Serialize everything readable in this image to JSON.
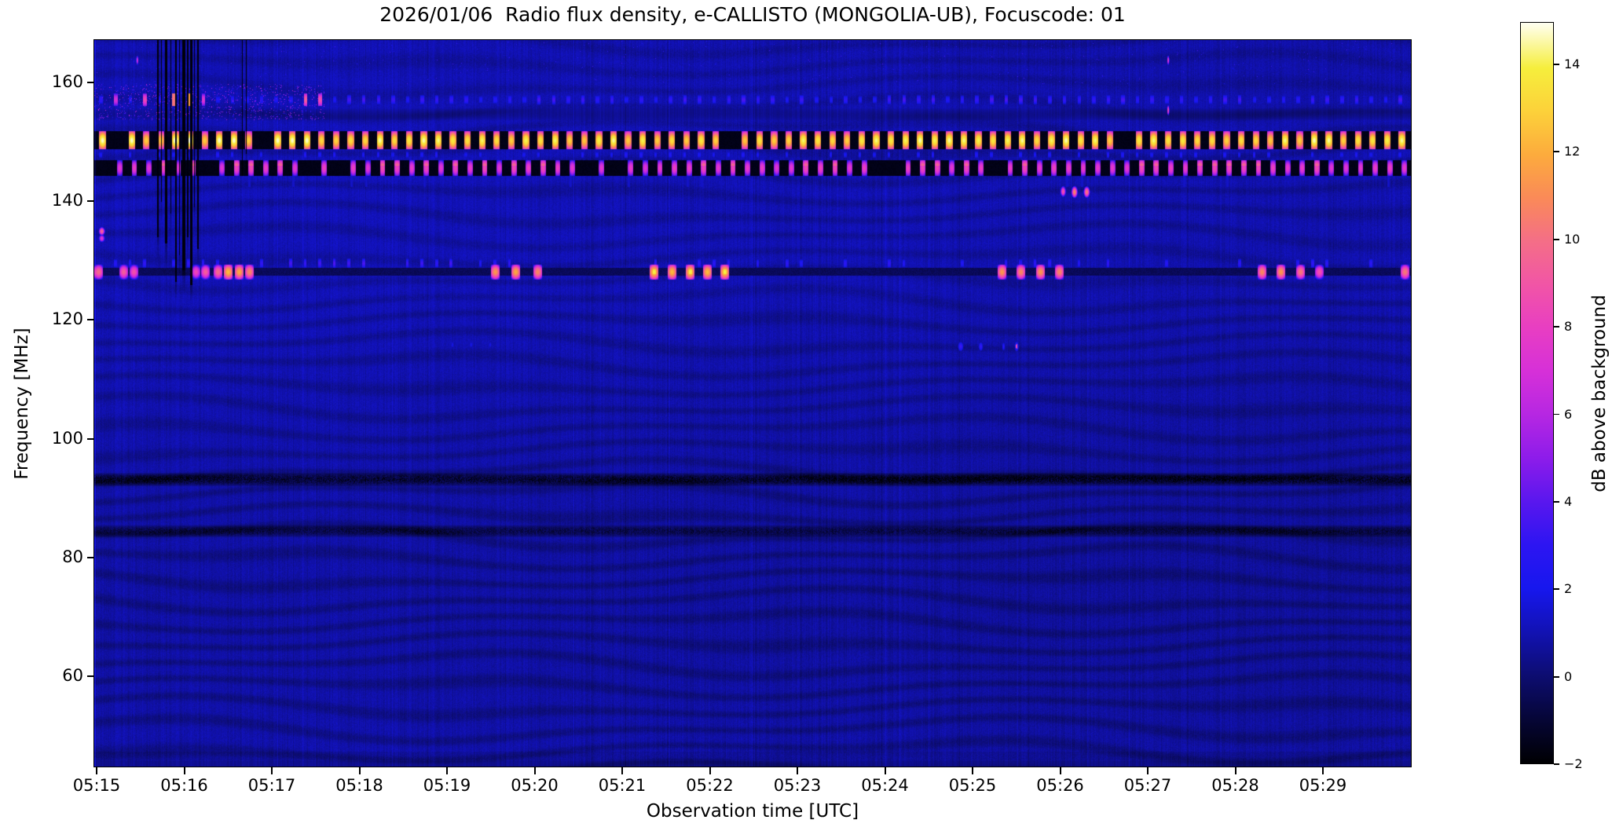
{
  "chart_data": {
    "type": "heatmap",
    "subtype": "radio-spectrogram",
    "title": "2026/01/06  Radio flux density, e-CALLISTO (MONGOLIA-UB), Focuscode: 01",
    "xlabel": "Observation time [UTC]",
    "ylabel": "Frequency [MHz]",
    "grid": false,
    "x_tick_labels": [
      "05:15",
      "05:16",
      "05:17",
      "05:18",
      "05:19",
      "05:20",
      "05:21",
      "05:22",
      "05:23",
      "05:24",
      "05:25",
      "05:26",
      "05:27",
      "05:28",
      "05:29"
    ],
    "x_range_minutes_after_0515": [
      0,
      15.03
    ],
    "y_tick_labels": [
      "160",
      "140",
      "120",
      "100",
      "80",
      "60"
    ],
    "y_ticks_mhz": [
      160,
      140,
      120,
      100,
      80,
      60
    ],
    "y_range_mhz": [
      44.8,
      167.1
    ],
    "background_level_db": 0.78,
    "colorbar": {
      "label": "dB above background",
      "tick_labels": [
        "14",
        "12",
        "10",
        "8",
        "6",
        "4",
        "2",
        "0",
        "−2"
      ],
      "tick_values": [
        14,
        12,
        10,
        8,
        6,
        4,
        2,
        0,
        -2
      ],
      "value_range": [
        -2.05,
        15.05
      ],
      "gradient_stops": [
        {
          "v": 15.05,
          "c": "#fffff2"
        },
        {
          "v": 14,
          "c": "#f6ee3c"
        },
        {
          "v": 13,
          "c": "#fcd13a"
        },
        {
          "v": 12,
          "c": "#fcab3d"
        },
        {
          "v": 11,
          "c": "#fa8a58"
        },
        {
          "v": 10,
          "c": "#f46e87"
        },
        {
          "v": 9,
          "c": "#f155a6"
        },
        {
          "v": 8,
          "c": "#e83ec2"
        },
        {
          "v": 7,
          "c": "#d630d8"
        },
        {
          "v": 6,
          "c": "#b627e2"
        },
        {
          "v": 5,
          "c": "#8d1cea"
        },
        {
          "v": 4,
          "c": "#5a17ee"
        },
        {
          "v": 3,
          "c": "#2d15f2"
        },
        {
          "v": 2,
          "c": "#1717ee"
        },
        {
          "v": 1,
          "c": "#1212b4"
        },
        {
          "v": 0,
          "c": "#0d0d72"
        },
        {
          "v": -1,
          "c": "#060638"
        },
        {
          "v": -2.05,
          "c": "#000002"
        }
      ]
    },
    "features": {
      "dash_period_s": 10.0,
      "carrier_bands": [
        {
          "name": "pulsed carrier ~157 MHz",
          "band_mhz": [
            156.3,
            158.0
          ],
          "dash_db": [
            2.2,
            3.6
          ],
          "bright_until_min": 2.4
        },
        {
          "name": "strong carrier ~150 MHz",
          "band_mhz": [
            148.8,
            151.8
          ],
          "lane_db": -1.75,
          "dash_db": [
            12.8,
            14.8
          ],
          "white_segment_min": [
            0.82,
            1.12
          ],
          "bright_until_min": 2.6
        },
        {
          "name": "faint pulsed ~148 MHz",
          "band_mhz": [
            147.3,
            148.5
          ],
          "dash_db": [
            1.6,
            2.5
          ]
        },
        {
          "name": "carrier ~145.6 MHz",
          "band_mhz": [
            144.3,
            147.0
          ],
          "lane_db": -1.75,
          "dash_db": [
            7.4,
            8.8
          ],
          "orange_tip_db": 10.6
        }
      ],
      "line_128": {
        "lane_mhz": [
          127.5,
          128.8
        ],
        "lane_db": -0.5,
        "tick_row_mhz": [
          128.8,
          130.4
        ],
        "tick_db": [
          1.6,
          3.1
        ],
        "enhanced_tick_min": [
          2.1,
          4.05
        ],
        "bursts_min_db": [
          [
            0.02,
            10
          ],
          [
            0.31,
            9.5
          ],
          [
            0.42,
            9
          ],
          [
            1.13,
            8.5
          ],
          [
            1.24,
            9.5
          ],
          [
            1.38,
            10
          ],
          [
            1.5,
            12.5
          ],
          [
            1.62,
            12
          ],
          [
            1.74,
            11
          ],
          [
            4.55,
            11.5
          ],
          [
            4.78,
            12
          ],
          [
            5.03,
            11
          ],
          [
            6.36,
            13
          ],
          [
            6.57,
            12.5
          ],
          [
            6.77,
            13
          ],
          [
            6.97,
            12.5
          ],
          [
            7.17,
            13
          ],
          [
            10.33,
            11.5
          ],
          [
            10.55,
            11
          ],
          [
            10.77,
            11.5
          ],
          [
            10.99,
            11
          ],
          [
            13.3,
            11
          ],
          [
            13.52,
            11.5
          ],
          [
            13.74,
            10.5
          ],
          [
            13.96,
            9
          ],
          [
            14.93,
            10.5
          ]
        ]
      },
      "dark_bands": [
        {
          "freq_mhz": 93.2,
          "half_width_mhz": 1.2,
          "depth_db": 1.7
        },
        {
          "freq_mhz": 84.5,
          "half_width_mhz": 1.1,
          "depth_db": 1.3
        },
        {
          "freq_mhz": 154.7,
          "half_width_mhz": 1.1,
          "depth_db": 0.5
        }
      ],
      "dropout_columns": [
        {
          "min": 0.69,
          "w_s": 1.1,
          "down_to_mhz": 134
        },
        {
          "min": 0.735,
          "w_s": 0.6,
          "down_to_mhz": 140
        },
        {
          "min": 0.78,
          "w_s": 1.6,
          "down_to_mhz": 133
        },
        {
          "min": 0.843,
          "w_s": 0.6,
          "down_to_mhz": 138
        },
        {
          "min": 0.897,
          "w_s": 1.1,
          "down_to_mhz": 126.5
        },
        {
          "min": 0.942,
          "w_s": 0.6,
          "down_to_mhz": 131
        },
        {
          "min": 0.978,
          "w_s": 2.2,
          "down_to_mhz": 128.5
        },
        {
          "min": 1.031,
          "w_s": 1.1,
          "down_to_mhz": 134
        },
        {
          "min": 1.067,
          "w_s": 1.6,
          "down_to_mhz": 126
        },
        {
          "min": 1.112,
          "w_s": 0.6,
          "down_to_mhz": 139
        },
        {
          "min": 1.148,
          "w_s": 1.1,
          "down_to_mhz": 132
        },
        {
          "min": 1.66,
          "w_s": 0.6,
          "down_to_mhz": 147
        },
        {
          "min": 1.7,
          "w_s": 0.6,
          "down_to_mhz": 148
        }
      ],
      "point_events": [
        {
          "min": 0.46,
          "mhz": 163.8,
          "w_s": 1.6,
          "h_mhz": 1.3,
          "db": 7.5
        },
        {
          "min": 12.23,
          "mhz": 163.8,
          "w_s": 1.6,
          "h_mhz": 1.3,
          "db": 8
        },
        {
          "min": 12.23,
          "mhz": 155.4,
          "w_s": 1.6,
          "h_mhz": 1.4,
          "db": 9
        },
        {
          "min": 0.055,
          "mhz": 135.0,
          "w_s": 4.5,
          "h_mhz": 1.1,
          "db": 9.8
        },
        {
          "min": 0.055,
          "mhz": 133.8,
          "w_s": 4.5,
          "h_mhz": 1.0,
          "db": 7.5
        },
        {
          "min": 11.03,
          "mhz": 141.7,
          "w_s": 4.0,
          "h_mhz": 1.5,
          "db": 9
        },
        {
          "min": 11.16,
          "mhz": 141.6,
          "w_s": 4.5,
          "h_mhz": 1.7,
          "db": 11
        },
        {
          "min": 11.3,
          "mhz": 141.6,
          "w_s": 4.5,
          "h_mhz": 1.6,
          "db": 10.5
        },
        {
          "min": 9.86,
          "mhz": 115.6,
          "w_s": 4.5,
          "h_mhz": 1.6,
          "db": 3.4
        },
        {
          "min": 10.09,
          "mhz": 115.6,
          "w_s": 3.6,
          "h_mhz": 1.5,
          "db": 3.2
        },
        {
          "min": 10.35,
          "mhz": 115.6,
          "w_s": 2.6,
          "h_mhz": 1.4,
          "db": 2.8
        },
        {
          "min": 10.5,
          "mhz": 115.6,
          "w_s": 3.4,
          "h_mhz": 1.7,
          "db": 3.6,
          "core_db": 8.5
        },
        {
          "min": 4.06,
          "mhz": 115.9,
          "w_s": 2.4,
          "h_mhz": 1.2,
          "db": 2.0
        },
        {
          "min": 4.27,
          "mhz": 115.9,
          "w_s": 2.4,
          "h_mhz": 1.2,
          "db": 2.1
        },
        {
          "min": 4.49,
          "mhz": 115.9,
          "w_s": 2.4,
          "h_mhz": 1.2,
          "db": 1.9
        }
      ]
    }
  }
}
